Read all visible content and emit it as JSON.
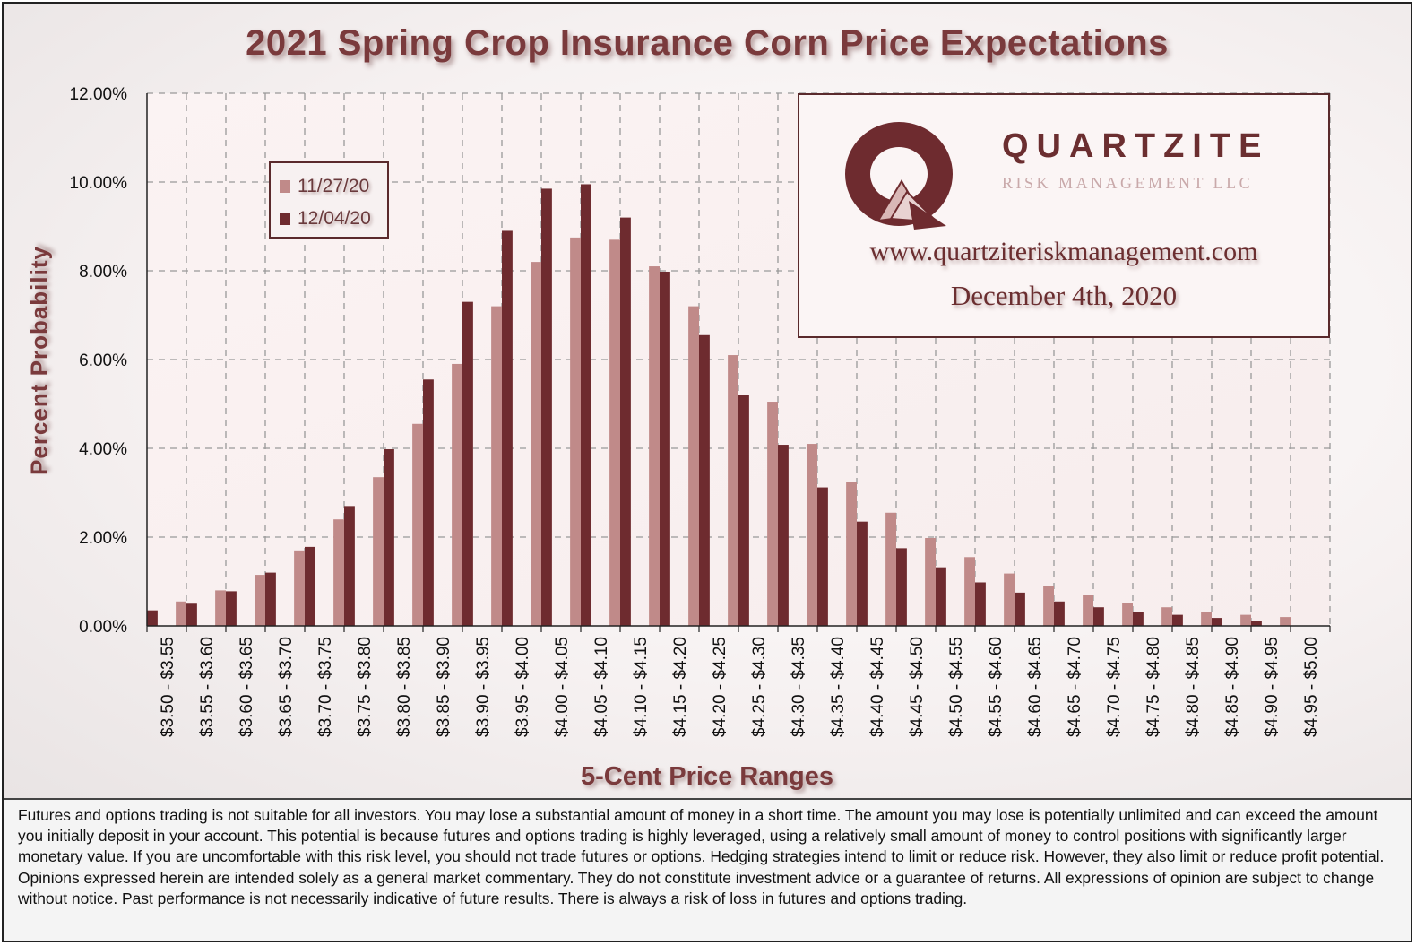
{
  "chart_data": {
    "type": "bar",
    "title": "2021 Spring Crop Insurance Corn Price Expectations",
    "xlabel": "5-Cent Price Ranges",
    "ylabel": "Percent Probability",
    "ylim": [
      0,
      12
    ],
    "y_ticks": [
      "0.00%",
      "2.00%",
      "4.00%",
      "6.00%",
      "8.00%",
      "10.00%",
      "12.00%"
    ],
    "grid": "dashed",
    "legend_position": "top-left",
    "categories": [
      "$3.50 - $3.55",
      "$3.55 - $3.60",
      "$3.60 - $3.65",
      "$3.65 - $3.70",
      "$3.70 - $3.75",
      "$3.75 - $3.80",
      "$3.80 - $3.85",
      "$3.85 - $3.90",
      "$3.90 - $3.95",
      "$3.95 - $4.00",
      "$4.00 - $4.05",
      "$4.05 - $4.10",
      "$4.10 - $4.15",
      "$4.15 - $4.20",
      "$4.20 - $4.25",
      "$4.25 - $4.30",
      "$4.30 - $4.35",
      "$4.35 - $4.40",
      "$4.40 - $4.45",
      "$4.45 - $4.50",
      "$4.50 - $4.55",
      "$4.55 - $4.60",
      "$4.60 - $4.65",
      "$4.65 - $4.70",
      "$4.70 - $4.75",
      "$4.75 - $4.80",
      "$4.80 - $4.85",
      "$4.85 - $4.90",
      "$4.90 - $4.95",
      "$4.95 - $5.00"
    ],
    "series": [
      {
        "name": "11/27/20",
        "color": "#c08a89",
        "values": [
          null,
          0.55,
          0.8,
          1.15,
          1.7,
          2.4,
          3.35,
          4.55,
          5.9,
          7.2,
          8.2,
          8.75,
          8.7,
          8.1,
          7.2,
          6.1,
          5.05,
          4.1,
          3.25,
          2.55,
          1.98,
          1.55,
          1.18,
          0.9,
          0.7,
          0.52,
          0.42,
          0.32,
          0.25,
          0.2
        ]
      },
      {
        "name": "12/04/20",
        "color": "#6e2b2f",
        "values": [
          0.35,
          0.5,
          0.78,
          1.2,
          1.78,
          2.7,
          3.98,
          5.55,
          7.3,
          8.9,
          9.85,
          9.95,
          9.2,
          7.98,
          6.55,
          5.2,
          4.08,
          3.12,
          2.35,
          1.75,
          1.32,
          0.98,
          0.75,
          0.55,
          0.42,
          0.32,
          0.25,
          0.18,
          0.12,
          null
        ]
      }
    ]
  },
  "branding": {
    "name": "QUARTZITE",
    "subtitle": "RISK MANAGEMENT LLC",
    "website": "www.quartziteriskmanagement.com",
    "date": "December 4th, 2020",
    "logo_icon": "quartzite-q-logo-icon"
  },
  "disclaimer": "Futures and options trading is not suitable for all investors. You may lose a substantial amount of money in a short time. The amount you may lose is potentially unlimited and can exceed the amount you initially deposit in your account. This potential is because futures and options trading is highly leveraged, using a relatively small amount of money to control positions with significantly larger monetary value. If you are uncomfortable with this risk level, you should not trade futures or options. Hedging strategies intend to limit or reduce risk. However, they also limit or reduce profit potential. Opinions expressed herein are intended solely as a general market commentary. They do not constitute investment advice or a guarantee of returns. All expressions of opinion are subject to change without notice. Past performance is not necessarily indicative of future results. There is always a risk of loss in futures and options trading.",
  "colors": {
    "title": "#7a3a3c",
    "border": "#5a2a2c"
  }
}
